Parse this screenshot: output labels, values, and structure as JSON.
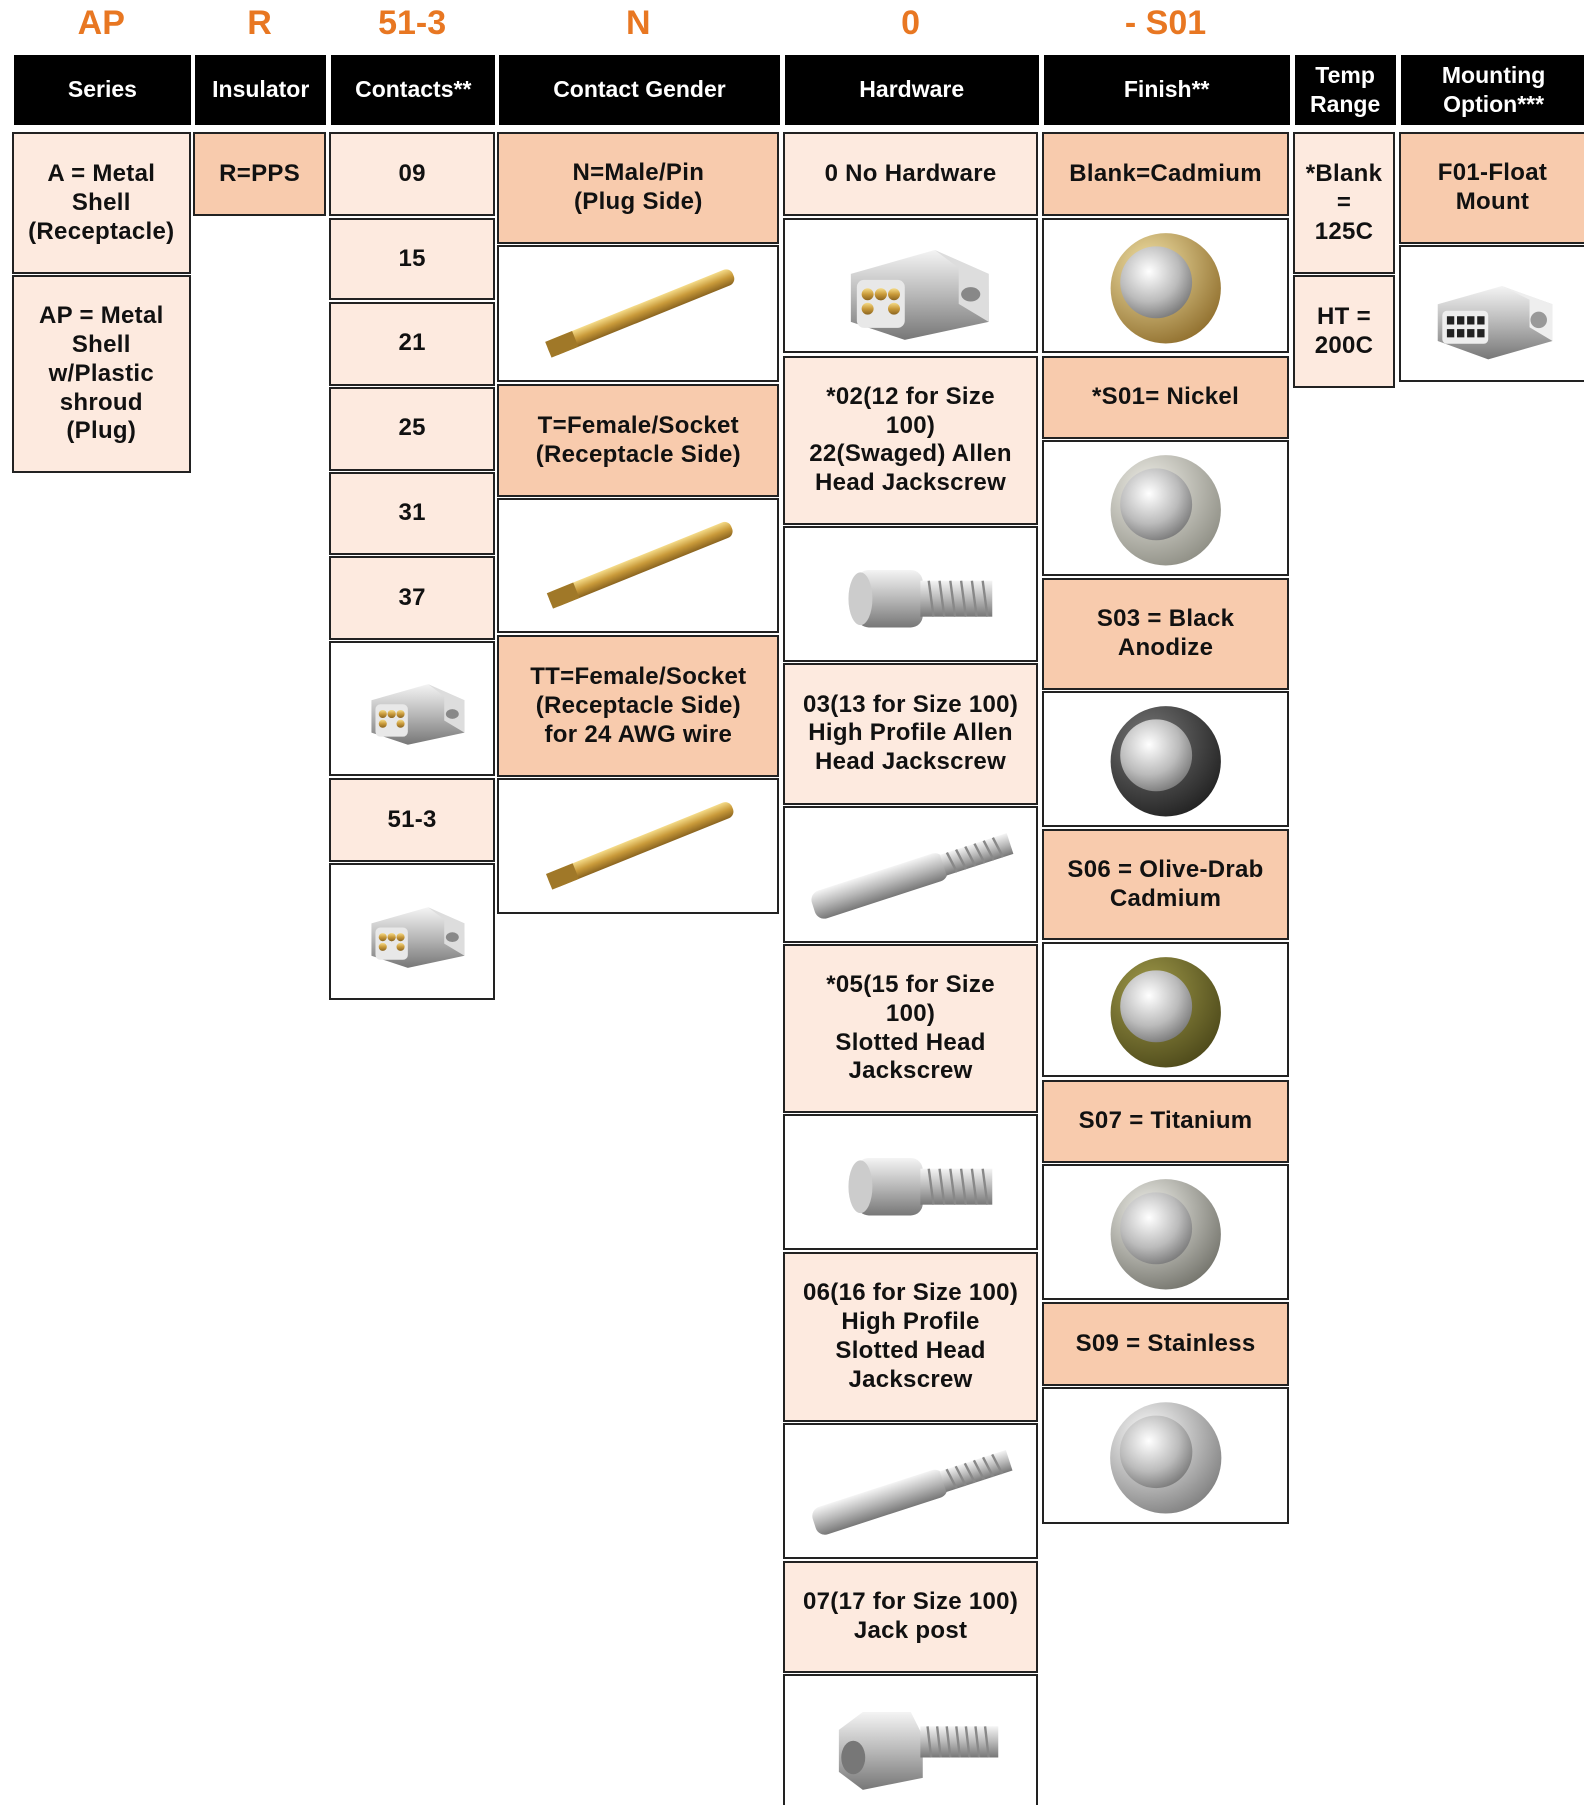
{
  "columns": [
    {
      "code": "AP",
      "header": [
        "Series"
      ],
      "cells": [
        {
          "lines": [
            "A = Metal",
            "Shell",
            "(Receptacle)"
          ]
        },
        {
          "lines": [
            "AP = Metal",
            "Shell",
            "w/Plastic",
            "shroud",
            "(Plug)"
          ]
        }
      ]
    },
    {
      "code": "R",
      "header": [
        "Insulator"
      ],
      "cells": [
        {
          "lines": [
            "R=PPS"
          ]
        }
      ]
    },
    {
      "code": "51-3",
      "header": [
        "Contacts**"
      ],
      "cells": [
        {
          "lines": [
            "09"
          ]
        },
        {
          "lines": [
            "15"
          ]
        },
        {
          "lines": [
            "21"
          ]
        },
        {
          "lines": [
            "25"
          ]
        },
        {
          "lines": [
            "31"
          ]
        },
        {
          "lines": [
            "37"
          ]
        },
        {
          "lines": [
            "51-3"
          ]
        }
      ]
    },
    {
      "code": "N",
      "header": [
        "Contact Gender"
      ],
      "cells": [
        {
          "lines": [
            "N=Male/Pin",
            "(Plug Side)"
          ]
        },
        {
          "lines": [
            "T=Female/Socket",
            "(Receptacle Side)"
          ]
        },
        {
          "lines": [
            "TT=Female/Socket",
            "(Receptacle Side)",
            "for 24 AWG wire"
          ]
        }
      ]
    },
    {
      "code": "0",
      "header": [
        "Hardware"
      ],
      "cells": [
        {
          "lines": [
            "0 No Hardware"
          ]
        },
        {
          "lines": [
            "*02(12 for Size",
            "100)",
            "22(Swaged) Allen",
            "Head Jackscrew"
          ]
        },
        {
          "lines": [
            "03(13 for Size 100)",
            "High Profile Allen",
            "Head Jackscrew"
          ]
        },
        {
          "lines": [
            "*05(15 for Size",
            "100)",
            "Slotted Head",
            "Jackscrew"
          ]
        },
        {
          "lines": [
            "06(16 for Size 100)",
            "High Profile",
            "Slotted Head",
            "Jackscrew"
          ]
        },
        {
          "lines": [
            "07(17 for Size 100)",
            "Jack post"
          ]
        }
      ]
    },
    {
      "code": "- S01",
      "header": [
        "Finish**"
      ],
      "cells": [
        {
          "lines": [
            "Blank=Cadmium"
          ]
        },
        {
          "lines": [
            "*S01= Nickel"
          ]
        },
        {
          "lines": [
            "S03 = Black",
            "Anodize"
          ]
        },
        {
          "lines": [
            "S06 = Olive-Drab",
            "Cadmium"
          ]
        },
        {
          "lines": [
            "S07 = Titanium"
          ]
        },
        {
          "lines": [
            "S09 = Stainless"
          ]
        }
      ]
    },
    {
      "header": [
        "Temp",
        "Range"
      ],
      "cells": [
        {
          "lines": [
            "*Blank",
            "=",
            "125C"
          ]
        },
        {
          "lines": [
            "HT =",
            "200C"
          ]
        }
      ]
    },
    {
      "header": [
        "Mounting",
        "Option***"
      ],
      "cells": [
        {
          "lines": [
            "F01-Float",
            "Mount"
          ]
        }
      ]
    }
  ]
}
